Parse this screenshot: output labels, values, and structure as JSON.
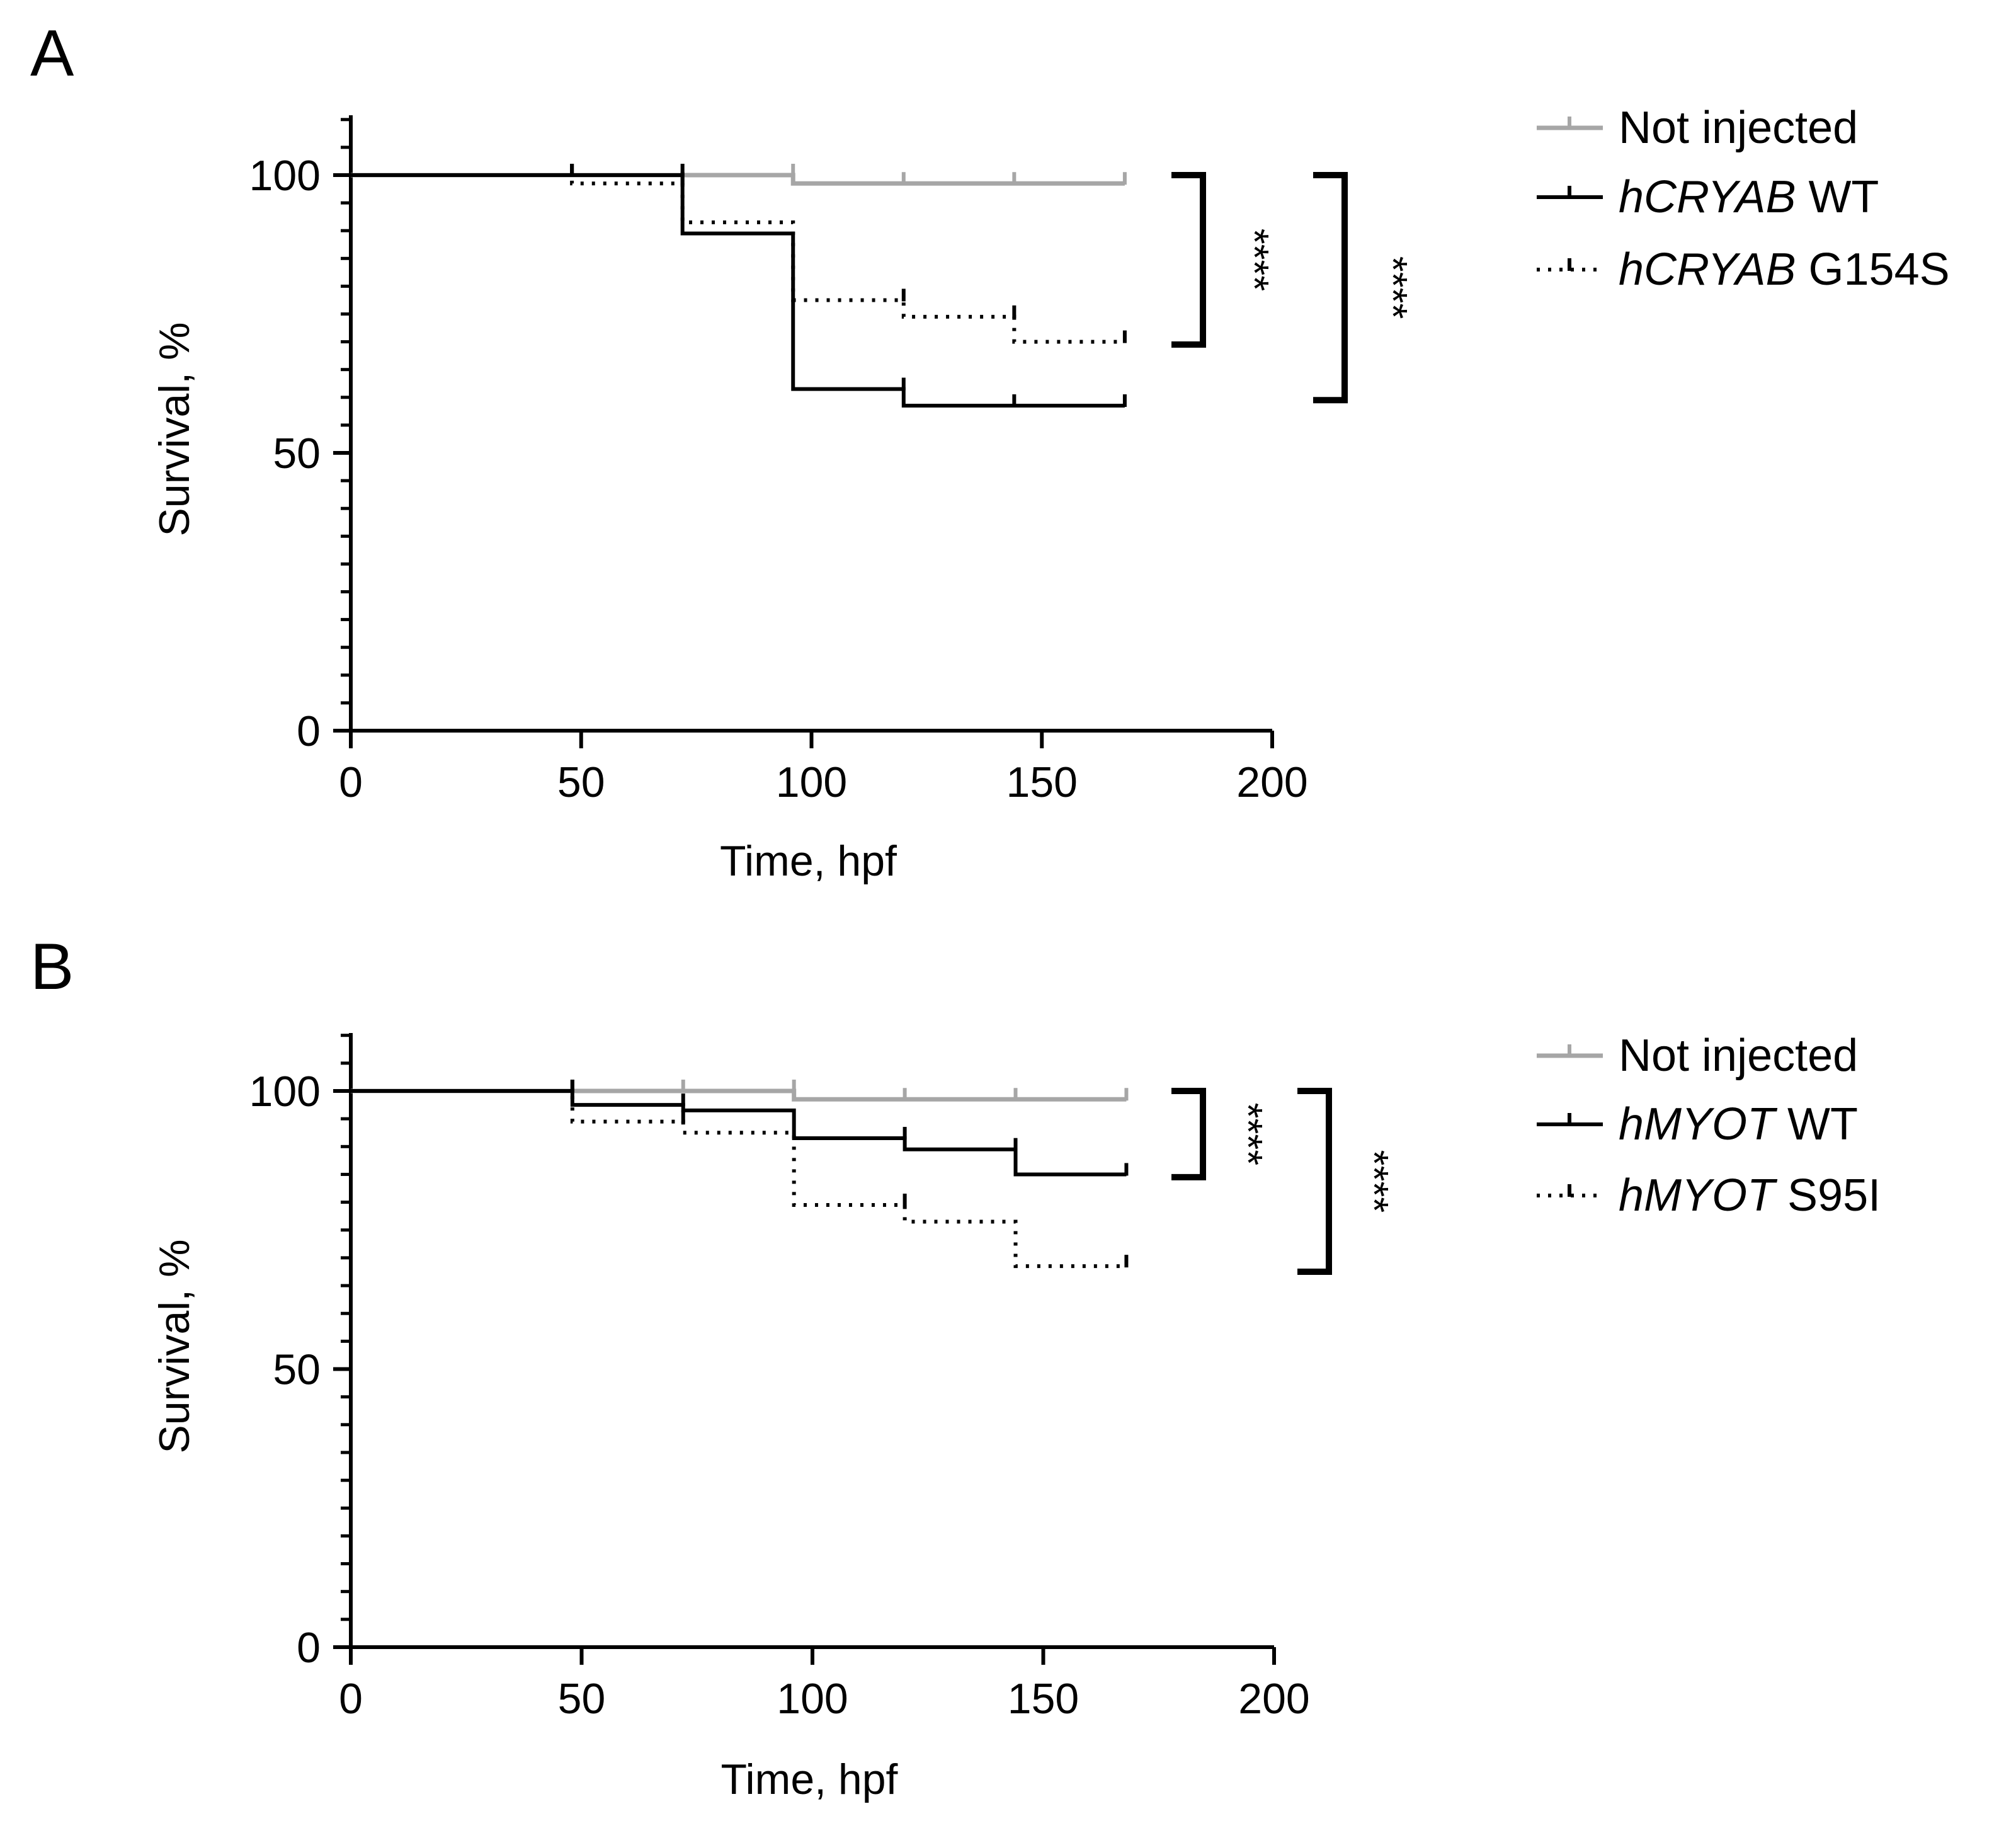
{
  "colors": {
    "not_injected": "#a6a6a6",
    "wt": "#000000",
    "mutant": "#000000",
    "axis": "#000000"
  },
  "chart_data": [
    {
      "panel": "A",
      "type": "line",
      "subtype": "kaplan-meier-step",
      "xlabel": "Time, hpf",
      "ylabel": "Survival, %",
      "xlim": [
        0,
        200
      ],
      "ylim": [
        0,
        110
      ],
      "xticks": [
        "0",
        "50",
        "100",
        "150",
        "200"
      ],
      "yticks": [
        "0",
        "50",
        "100"
      ],
      "series": [
        {
          "key": "not_injected",
          "name_italic": "",
          "name_plain": "Not injected",
          "style": "solid-gray",
          "x": [
            0,
            96,
            168
          ],
          "y": [
            100,
            98.5,
            98.5
          ],
          "censor_x": [
            48,
            72,
            96,
            120,
            144,
            168
          ]
        },
        {
          "key": "wt",
          "name_italic": "hCRYAB",
          "name_plain": " WT",
          "style": "solid-black",
          "x": [
            0,
            72,
            96,
            120,
            168
          ],
          "y": [
            100,
            89.5,
            61.5,
            58.5,
            58.5
          ],
          "censor_x": [
            48,
            72,
            120,
            144,
            168
          ]
        },
        {
          "key": "mutant",
          "name_italic": "hCRYAB",
          "name_plain": " G154S",
          "style": "dotted-black",
          "x": [
            0,
            48,
            72,
            96,
            120,
            144,
            168
          ],
          "y": [
            100,
            98.5,
            91.5,
            77.5,
            74.5,
            70,
            70
          ],
          "censor_x": [
            48,
            72,
            120,
            144,
            168
          ]
        }
      ],
      "significance": [
        {
          "label": "****",
          "y_top": 100,
          "y_bottom": 69.5,
          "offset": "inner"
        },
        {
          "label": "****",
          "y_top": 100,
          "y_bottom": 59.5,
          "offset": "outer"
        }
      ]
    },
    {
      "panel": "B",
      "type": "line",
      "subtype": "kaplan-meier-step",
      "xlabel": "Time, hpf",
      "ylabel": "Survival, %",
      "xlim": [
        0,
        200
      ],
      "ylim": [
        0,
        110
      ],
      "xticks": [
        "0",
        "50",
        "100",
        "150",
        "200"
      ],
      "yticks": [
        "0",
        "50",
        "100"
      ],
      "series": [
        {
          "key": "not_injected",
          "name_italic": "",
          "name_plain": "Not injected",
          "style": "solid-gray",
          "x": [
            0,
            96,
            168
          ],
          "y": [
            100,
            98.5,
            98.5
          ],
          "censor_x": [
            48,
            72,
            96,
            120,
            144,
            168
          ]
        },
        {
          "key": "wt",
          "name_italic": "hMYOT",
          "name_plain": " WT",
          "style": "solid-black",
          "x": [
            0,
            48,
            72,
            96,
            120,
            144,
            168
          ],
          "y": [
            100,
            97.5,
            96.5,
            91.5,
            89.5,
            85,
            85
          ],
          "censor_x": [
            48,
            72,
            120,
            144,
            168
          ]
        },
        {
          "key": "mutant",
          "name_italic": "hMYOT",
          "name_plain": " S95I",
          "style": "dotted-black",
          "x": [
            0,
            48,
            72,
            96,
            120,
            144,
            168
          ],
          "y": [
            100,
            94.5,
            92.5,
            79.5,
            76.5,
            68.5,
            68.5
          ],
          "censor_x": [
            48,
            72,
            120,
            168
          ]
        }
      ],
      "significance": [
        {
          "label": "****",
          "y_top": 100,
          "y_bottom": 84.5,
          "offset": "inner"
        },
        {
          "label": "****",
          "y_top": 100,
          "y_bottom": 67.5,
          "offset": "outer"
        }
      ]
    }
  ]
}
